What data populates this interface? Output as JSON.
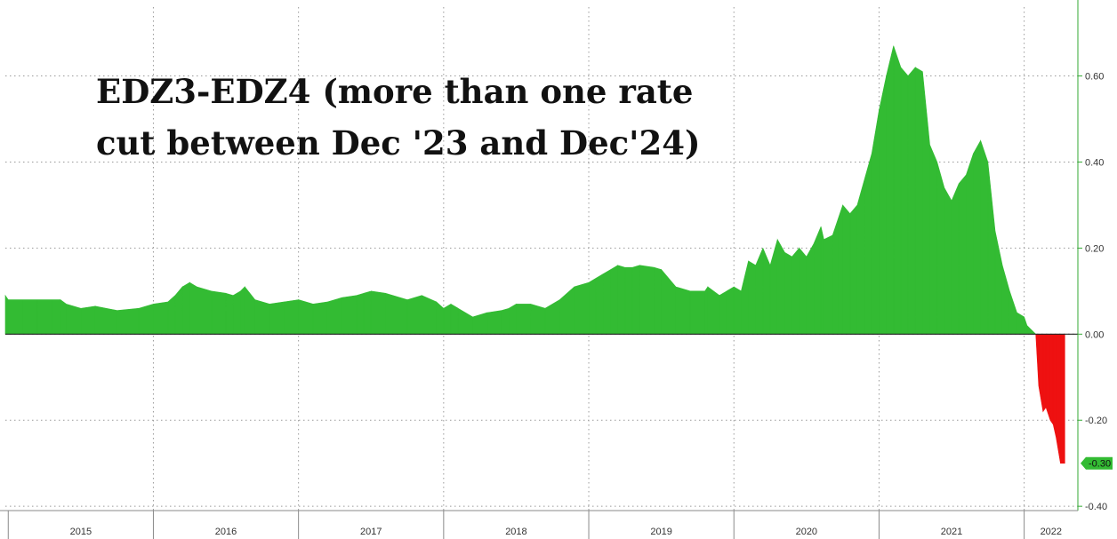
{
  "chart_data": {
    "type": "area",
    "title_lines": [
      "EDZ3-EDZ4 (more than one rate",
      "cut between Dec '23 and Dec'24)"
    ],
    "xlabel": "",
    "ylabel": "",
    "x_tick_labels": [
      "2015",
      "2016",
      "2017",
      "2018",
      "2019",
      "2020",
      "2021",
      "2022"
    ],
    "y_ticks": [
      {
        "value": 0.6,
        "label": "0.60"
      },
      {
        "value": 0.4,
        "label": "0.40"
      },
      {
        "value": 0.2,
        "label": "0.20"
      },
      {
        "value": 0.0,
        "label": "0.00"
      },
      {
        "value": -0.2,
        "label": "-0.20"
      },
      {
        "value": -0.4,
        "label": "-0.40"
      }
    ],
    "ylim": [
      -0.41,
      0.76
    ],
    "xlim": [
      2014.98,
      2022.37
    ],
    "grid": true,
    "positive_color": "#33bb33",
    "negative_color": "#ee1111",
    "last_value_label": "-0.30",
    "last_value": -0.3,
    "series": [
      {
        "x": [
          2014.98,
          2015.0,
          2015.1,
          2015.2,
          2015.3,
          2015.36,
          2015.4,
          2015.5,
          2015.6,
          2015.75,
          2015.9,
          2016.0,
          2016.1,
          2016.15,
          2016.2,
          2016.25,
          2016.3,
          2016.4,
          2016.5,
          2016.55,
          2016.6,
          2016.63,
          2016.7,
          2016.8,
          2016.9,
          2017.0,
          2017.1,
          2017.2,
          2017.3,
          2017.4,
          2017.45,
          2017.5,
          2017.6,
          2017.75,
          2017.85,
          2017.95,
          2018.0,
          2018.05,
          2018.1,
          2018.2,
          2018.3,
          2018.4,
          2018.45,
          2018.5,
          2018.6,
          2018.7,
          2018.8,
          2018.9,
          2019.0,
          2019.05,
          2019.1,
          2019.15,
          2019.2,
          2019.25,
          2019.3,
          2019.35,
          2019.45,
          2019.5,
          2019.6,
          2019.7,
          2019.8,
          2019.82,
          2019.9,
          2019.95,
          2020.0,
          2020.05,
          2020.1,
          2020.15,
          2020.2,
          2020.25,
          2020.3,
          2020.35,
          2020.4,
          2020.45,
          2020.5,
          2020.55,
          2020.6,
          2020.62,
          2020.68,
          2020.72,
          2020.75,
          2020.8,
          2020.85,
          2020.9,
          2020.95,
          2021.0,
          2021.05,
          2021.1,
          2021.15,
          2021.2,
          2021.25,
          2021.3,
          2021.35,
          2021.4,
          2021.45,
          2021.5,
          2021.55,
          2021.6,
          2021.65,
          2021.7,
          2021.75,
          2021.8,
          2021.85,
          2021.9,
          2021.95,
          2022.0,
          2022.02,
          2022.05,
          2022.08,
          2022.1,
          2022.13,
          2022.15,
          2022.18,
          2022.2,
          2022.22,
          2022.25,
          2022.28
        ],
        "values": [
          0.09,
          0.08,
          0.08,
          0.08,
          0.08,
          0.08,
          0.07,
          0.06,
          0.065,
          0.055,
          0.06,
          0.07,
          0.075,
          0.09,
          0.11,
          0.12,
          0.11,
          0.1,
          0.095,
          0.09,
          0.1,
          0.11,
          0.08,
          0.07,
          0.075,
          0.08,
          0.07,
          0.075,
          0.085,
          0.09,
          0.095,
          0.1,
          0.095,
          0.08,
          0.09,
          0.075,
          0.06,
          0.07,
          0.06,
          0.04,
          0.05,
          0.055,
          0.06,
          0.07,
          0.07,
          0.06,
          0.08,
          0.11,
          0.12,
          0.13,
          0.14,
          0.15,
          0.16,
          0.155,
          0.155,
          0.16,
          0.155,
          0.15,
          0.11,
          0.1,
          0.1,
          0.11,
          0.09,
          0.1,
          0.11,
          0.1,
          0.17,
          0.16,
          0.2,
          0.16,
          0.22,
          0.19,
          0.18,
          0.2,
          0.18,
          0.21,
          0.25,
          0.22,
          0.23,
          0.27,
          0.3,
          0.28,
          0.3,
          0.36,
          0.42,
          0.52,
          0.6,
          0.67,
          0.62,
          0.6,
          0.62,
          0.61,
          0.44,
          0.4,
          0.34,
          0.31,
          0.35,
          0.37,
          0.42,
          0.45,
          0.4,
          0.24,
          0.16,
          0.1,
          0.05,
          0.04,
          0.02,
          0.01,
          0.0,
          -0.12,
          -0.18,
          -0.17,
          -0.2,
          -0.21,
          -0.24,
          -0.3,
          -0.3
        ]
      }
    ]
  }
}
